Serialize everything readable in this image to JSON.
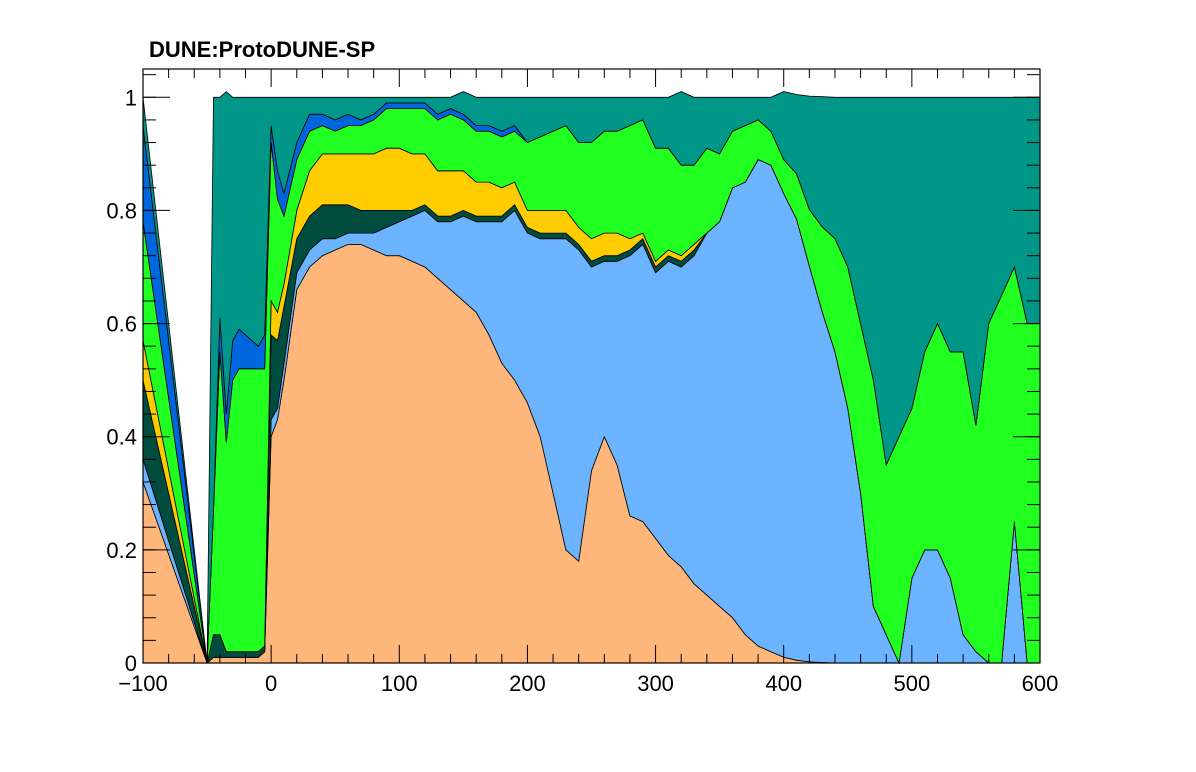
{
  "chart_data": {
    "type": "area",
    "stacked": true,
    "title": "DUNE:ProtoDUNE-SP",
    "xlabel": "",
    "ylabel": "",
    "xlim": [
      -100,
      600
    ],
    "ylim": [
      0,
      1.05
    ],
    "grid": false,
    "legend": "none",
    "x_ticks": [
      -100,
      0,
      100,
      200,
      300,
      400,
      500,
      600
    ],
    "x_tick_labels": [
      "−100",
      "0",
      "100",
      "200",
      "300",
      "400",
      "500",
      "600"
    ],
    "y_ticks": [
      0,
      0.2,
      0.4,
      0.6,
      0.8,
      1
    ],
    "y_tick_labels": [
      "0",
      "0.2",
      "0.4",
      "0.6",
      "0.8",
      "1"
    ],
    "colors": {
      "orange": "#ffb67a",
      "light_blue": "#6cb4ff",
      "dark_teal": "#004d40",
      "yellow": "#ffcc00",
      "green": "#21ff21",
      "blue": "#0066dd",
      "teal": "#009688"
    },
    "x": [
      -100,
      -50,
      -45,
      -40,
      -35,
      -30,
      -25,
      -20,
      -15,
      -10,
      -5,
      0,
      5,
      10,
      20,
      30,
      40,
      50,
      60,
      70,
      80,
      90,
      100,
      110,
      120,
      130,
      140,
      150,
      160,
      170,
      180,
      190,
      200,
      210,
      220,
      230,
      240,
      250,
      260,
      270,
      280,
      290,
      300,
      310,
      320,
      330,
      340,
      350,
      360,
      370,
      380,
      390,
      400,
      410,
      420,
      430,
      440,
      450,
      460,
      470,
      480,
      490,
      500,
      510,
      520,
      530,
      540,
      550,
      560,
      570,
      580,
      590,
      600
    ],
    "series": [
      {
        "color": "orange",
        "values": [
          0.32,
          0,
          0.01,
          0.01,
          0.01,
          0.01,
          0.01,
          0.01,
          0.01,
          0.01,
          0.02,
          0.4,
          0.43,
          0.5,
          0.66,
          0.7,
          0.72,
          0.73,
          0.74,
          0.74,
          0.73,
          0.72,
          0.72,
          0.71,
          0.7,
          0.68,
          0.66,
          0.64,
          0.62,
          0.58,
          0.53,
          0.5,
          0.46,
          0.4,
          0.3,
          0.2,
          0.18,
          0.34,
          0.4,
          0.35,
          0.26,
          0.25,
          0.22,
          0.19,
          0.17,
          0.14,
          0.12,
          0.1,
          0.08,
          0.05,
          0.03,
          0.02,
          0.01,
          0.005,
          0.002,
          0.001,
          0,
          0,
          0,
          0,
          0,
          0,
          0,
          0,
          0,
          0,
          0,
          0,
          0,
          0,
          0,
          0,
          0
        ]
      },
      {
        "color": "light_blue",
        "values": [
          0.04,
          0,
          0,
          0,
          0,
          0,
          0,
          0,
          0,
          0,
          0,
          0.03,
          0.02,
          0.03,
          0.03,
          0.03,
          0.03,
          0.02,
          0.02,
          0.02,
          0.03,
          0.05,
          0.06,
          0.08,
          0.1,
          0.1,
          0.12,
          0.15,
          0.16,
          0.2,
          0.25,
          0.3,
          0.3,
          0.35,
          0.45,
          0.55,
          0.55,
          0.36,
          0.31,
          0.36,
          0.46,
          0.49,
          0.47,
          0.52,
          0.53,
          0.58,
          0.64,
          0.68,
          0.76,
          0.8,
          0.86,
          0.86,
          0.82,
          0.78,
          0.7,
          0.62,
          0.55,
          0.45,
          0.3,
          0.1,
          0.05,
          0,
          0.15,
          0.2,
          0.2,
          0.15,
          0.05,
          0.02,
          0,
          0,
          0.25,
          0,
          0
        ]
      },
      {
        "color": "dark_teal",
        "values": [
          0.14,
          0,
          0.04,
          0.04,
          0.01,
          0.01,
          0.01,
          0.01,
          0.01,
          0.01,
          0.01,
          0.15,
          0.12,
          0.1,
          0.06,
          0.06,
          0.06,
          0.06,
          0.05,
          0.04,
          0.04,
          0.03,
          0.02,
          0.01,
          0.01,
          0.01,
          0.01,
          0.01,
          0.01,
          0.01,
          0.01,
          0.01,
          0.01,
          0.01,
          0.01,
          0.01,
          0.01,
          0.01,
          0.01,
          0.01,
          0.01,
          0.01,
          0.01,
          0.01,
          0.01,
          0.01,
          0,
          0,
          0,
          0,
          0,
          0,
          0,
          0,
          0,
          0,
          0,
          0,
          0,
          0,
          0,
          0,
          0,
          0,
          0,
          0,
          0,
          0,
          0,
          0,
          0,
          0,
          0
        ]
      },
      {
        "color": "yellow",
        "values": [
          0.07,
          0,
          0,
          0,
          0,
          0,
          0,
          0,
          0,
          0,
          0,
          0.06,
          0.05,
          0.04,
          0.05,
          0.08,
          0.09,
          0.09,
          0.09,
          0.1,
          0.1,
          0.11,
          0.11,
          0.1,
          0.09,
          0.08,
          0.08,
          0.07,
          0.06,
          0.06,
          0.05,
          0.04,
          0.03,
          0.04,
          0.04,
          0.04,
          0.03,
          0.04,
          0.04,
          0.04,
          0.02,
          0.01,
          0.01,
          0.01,
          0.01,
          0.01,
          0,
          0,
          0,
          0,
          0,
          0,
          0,
          0,
          0,
          0,
          0,
          0,
          0,
          0,
          0,
          0,
          0,
          0,
          0,
          0,
          0,
          0,
          0,
          0,
          0,
          0,
          0
        ]
      },
      {
        "color": "green",
        "values": [
          0.21,
          0,
          0.22,
          0.5,
          0.37,
          0.48,
          0.5,
          0.5,
          0.5,
          0.5,
          0.49,
          0.28,
          0.2,
          0.12,
          0.09,
          0.07,
          0.05,
          0.04,
          0.05,
          0.05,
          0.06,
          0.07,
          0.07,
          0.08,
          0.08,
          0.09,
          0.1,
          0.09,
          0.09,
          0.09,
          0.09,
          0.09,
          0.12,
          0.13,
          0.14,
          0.15,
          0.15,
          0.17,
          0.18,
          0.18,
          0.2,
          0.2,
          0.2,
          0.18,
          0.16,
          0.14,
          0.15,
          0.12,
          0.1,
          0.1,
          0.07,
          0.06,
          0.06,
          0.08,
          0.1,
          0.15,
          0.2,
          0.25,
          0.3,
          0.4,
          0.3,
          0.4,
          0.3,
          0.35,
          0.4,
          0.4,
          0.5,
          0.4,
          0.6,
          0.65,
          0.45,
          0.6,
          0.6
        ]
      },
      {
        "color": "blue",
        "values": [
          0.17,
          0,
          0,
          0.06,
          0.05,
          0.07,
          0.07,
          0.06,
          0.05,
          0.04,
          0.06,
          0.03,
          0.05,
          0.04,
          0.03,
          0.03,
          0.02,
          0.02,
          0.02,
          0.01,
          0.01,
          0.01,
          0.01,
          0.01,
          0.01,
          0.01,
          0.01,
          0.01,
          0.01,
          0.01,
          0.01,
          0.01,
          0,
          0,
          0,
          0,
          0,
          0,
          0,
          0,
          0,
          0,
          0,
          0,
          0,
          0,
          0,
          0,
          0,
          0,
          0,
          0,
          0,
          0,
          0,
          0,
          0,
          0,
          0,
          0,
          0,
          0,
          0,
          0,
          0,
          0,
          0,
          0,
          0,
          0,
          0,
          0,
          0
        ]
      },
      {
        "color": "teal",
        "values": [
          0.05,
          0,
          0.73,
          0.39,
          0.57,
          0.43,
          0.41,
          0.42,
          0.43,
          0.44,
          0.42,
          0.05,
          0.13,
          0.17,
          0.08,
          0.03,
          0.03,
          0.04,
          0.03,
          0.04,
          0.03,
          0.01,
          0.01,
          0.01,
          0.01,
          0.03,
          0.02,
          0.04,
          0.05,
          0.05,
          0.06,
          0.05,
          0.08,
          0.07,
          0.06,
          0.05,
          0.08,
          0.08,
          0.06,
          0.06,
          0.05,
          0.04,
          0.09,
          0.09,
          0.13,
          0.12,
          0.09,
          0.1,
          0.06,
          0.05,
          0.04,
          0.06,
          0.12,
          0.14,
          0.2,
          0.23,
          0.25,
          0.3,
          0.4,
          0.5,
          0.65,
          0.6,
          0.55,
          0.45,
          0.4,
          0.45,
          0.45,
          0.58,
          0.4,
          0.35,
          0.3,
          0.4,
          0.4
        ]
      }
    ]
  }
}
